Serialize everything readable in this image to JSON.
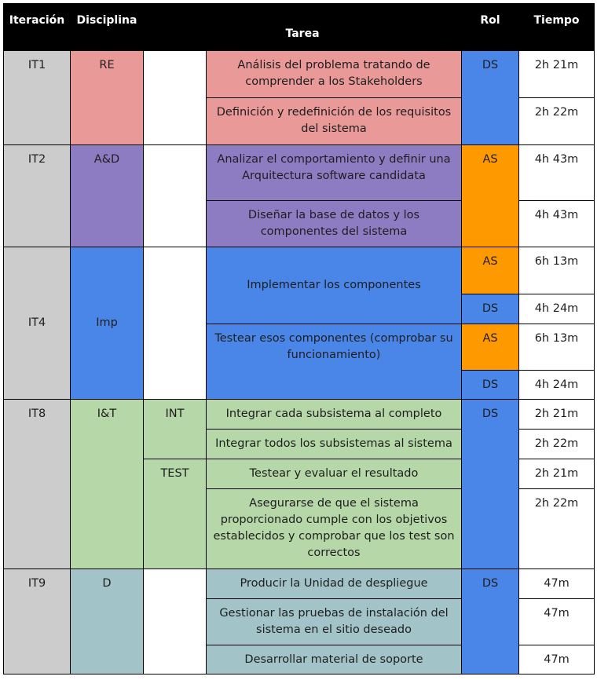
{
  "headers": {
    "iteracion": "Iteración",
    "disciplina": "Disciplina",
    "tarea": "Tarea",
    "rol": "Rol",
    "tiempo": "Tiempo"
  },
  "it1": {
    "iteracion": "IT1",
    "disciplina": "RE",
    "tasks": [
      "Análisis del problema tratando de comprender a los Stakeholders",
      "Definición y redefinición de los requisitos del sistema"
    ],
    "rol": "DS",
    "times": [
      "2h 21m",
      "2h 22m"
    ]
  },
  "it2": {
    "iteracion": "IT2",
    "disciplina": "A&D",
    "tasks": [
      "Analizar el comportamiento y definir una Arquitectura software candidata",
      "Diseñar la base de datos y los componentes del sistema"
    ],
    "rol": "AS",
    "times": [
      "4h 43m",
      "4h 43m"
    ]
  },
  "it4": {
    "iteracion": "IT4",
    "disciplina": "Imp",
    "tasks": [
      "Implementar los componentes",
      "Testear esos componentes (comprobar su funcionamiento)"
    ],
    "roles": [
      "AS",
      "DS",
      "AS",
      "DS"
    ],
    "times": [
      "6h 13m",
      "4h 24m",
      "6h 13m",
      "4h 24m"
    ]
  },
  "it8": {
    "iteracion": "IT8",
    "disciplina": "I&T",
    "sub": [
      "INT",
      "TEST"
    ],
    "tasks": [
      "Integrar cada subsistema al completo",
      "Integrar todos los subsistemas al sistema",
      "Testear y evaluar el resultado",
      "Asegurarse de que el sistema proporcionado cumple con los objetivos establecidos y comprobar que los test son correctos"
    ],
    "rol": "DS",
    "times": [
      "2h 21m",
      "2h 22m",
      "2h 21m",
      "2h 22m"
    ]
  },
  "it9": {
    "iteracion": "IT9",
    "disciplina": "D",
    "tasks": [
      "Producir la Unidad de despliegue",
      "Gestionar las pruebas de instalación del sistema en el sitio deseado",
      "Desarrollar material de soporte"
    ],
    "rol": "DS",
    "times": [
      "47m",
      "47m",
      "47m"
    ]
  },
  "colors": {
    "header": "#000000",
    "iteration": "#cccccc",
    "re": "#ea9999",
    "ad": "#8e7cc3",
    "imp": "#4a86e8",
    "it": "#b6d7a8",
    "d": "#a2c4c9",
    "as": "#ff9900",
    "ds": "#4a86e8"
  }
}
